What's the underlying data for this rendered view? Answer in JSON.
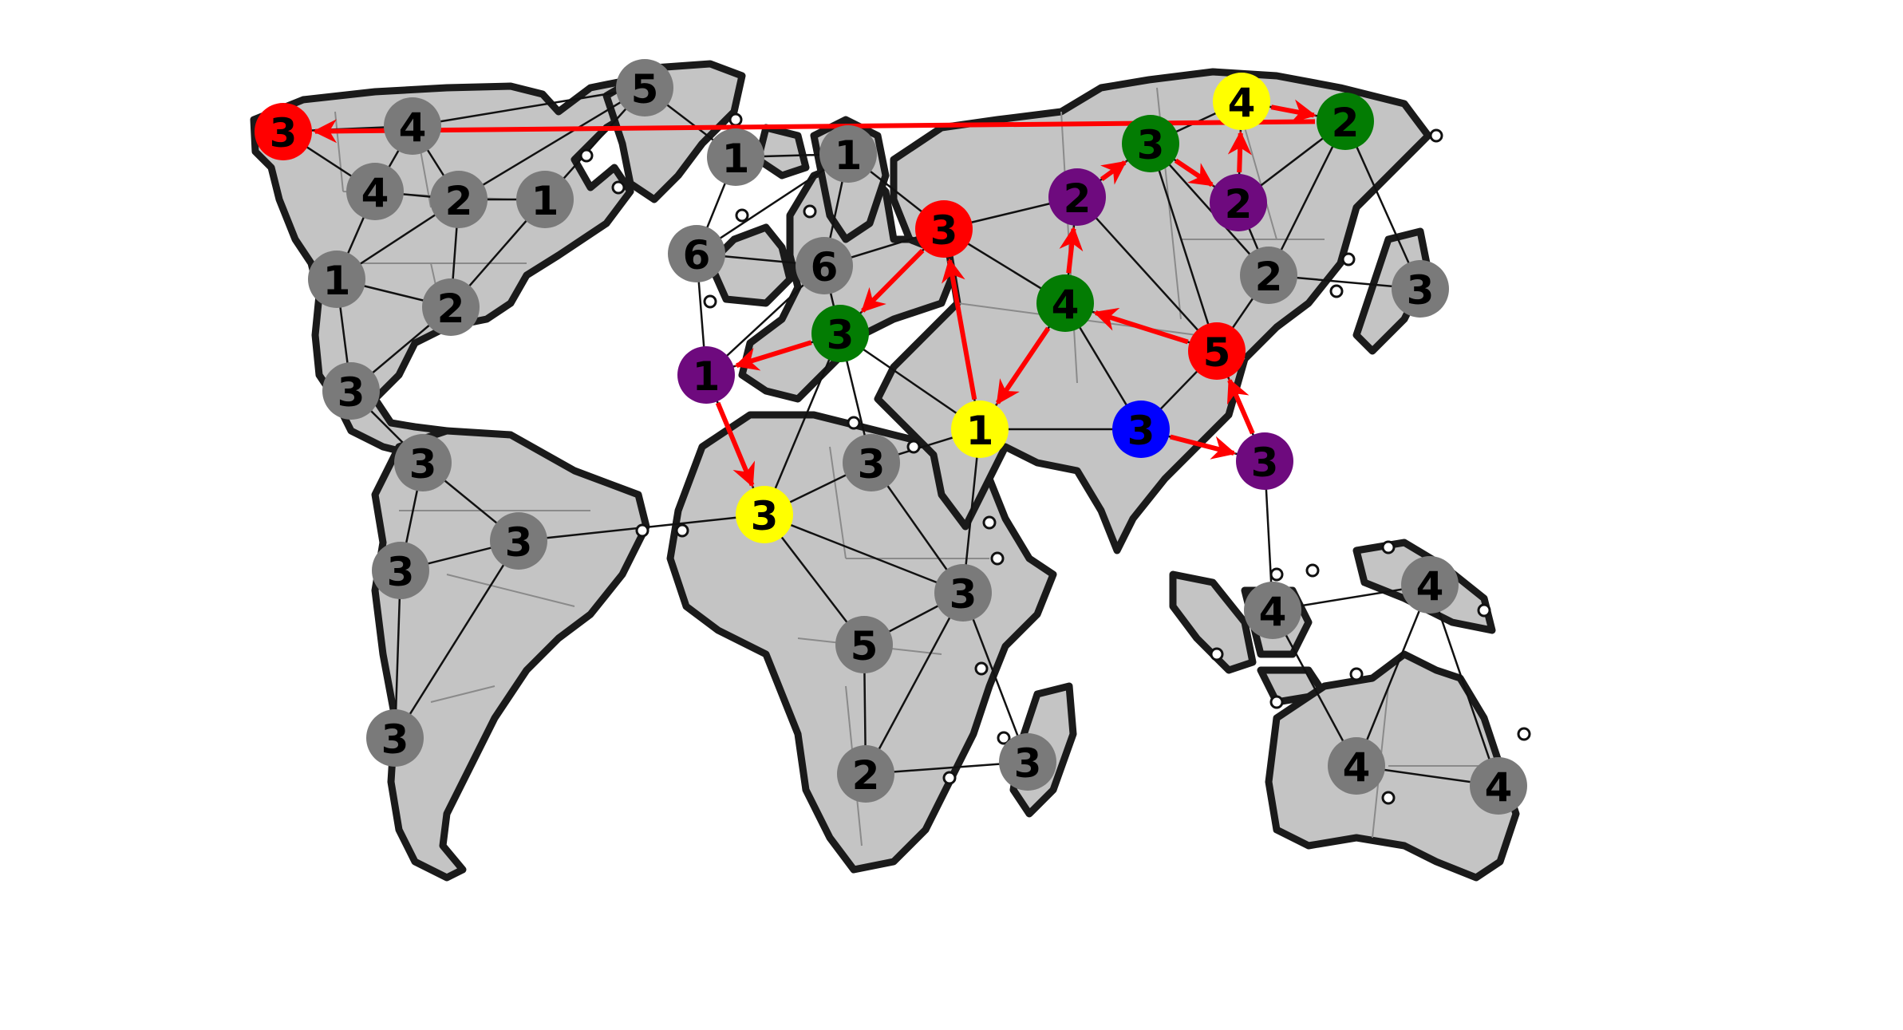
{
  "game": "Risk-style world map board",
  "colors": {
    "neutral": "#7a7a7a",
    "red": "#ff0000",
    "green": "#037c03",
    "purple": "#6e0a7e",
    "yellow": "#ffff00",
    "blue": "#0000ff",
    "arrow": "#ff0000"
  },
  "territories": [
    {
      "id": "alaska",
      "owner": "red",
      "troops": "3"
    },
    {
      "id": "northwest-territory",
      "owner": "neutral",
      "troops": "4"
    },
    {
      "id": "greenland",
      "owner": "neutral",
      "troops": "5"
    },
    {
      "id": "alberta",
      "owner": "neutral",
      "troops": "4"
    },
    {
      "id": "ontario",
      "owner": "neutral",
      "troops": "2"
    },
    {
      "id": "quebec",
      "owner": "neutral",
      "troops": "1"
    },
    {
      "id": "western-us",
      "owner": "neutral",
      "troops": "1"
    },
    {
      "id": "eastern-us",
      "owner": "neutral",
      "troops": "2"
    },
    {
      "id": "central-america",
      "owner": "neutral",
      "troops": "3"
    },
    {
      "id": "venezuela",
      "owner": "neutral",
      "troops": "3"
    },
    {
      "id": "peru",
      "owner": "neutral",
      "troops": "3"
    },
    {
      "id": "brazil",
      "owner": "neutral",
      "troops": "3"
    },
    {
      "id": "argentina",
      "owner": "neutral",
      "troops": "3"
    },
    {
      "id": "iceland",
      "owner": "neutral",
      "troops": "1"
    },
    {
      "id": "scandinavia",
      "owner": "neutral",
      "troops": "1"
    },
    {
      "id": "great-britain",
      "owner": "neutral",
      "troops": "6"
    },
    {
      "id": "northern-europe",
      "owner": "neutral",
      "troops": "6"
    },
    {
      "id": "ukraine",
      "owner": "red",
      "troops": "3"
    },
    {
      "id": "southern-europe",
      "owner": "green",
      "troops": "3"
    },
    {
      "id": "western-europe",
      "owner": "purple",
      "troops": "1"
    },
    {
      "id": "north-africa",
      "owner": "yellow",
      "troops": "3"
    },
    {
      "id": "egypt",
      "owner": "neutral",
      "troops": "3"
    },
    {
      "id": "east-africa",
      "owner": "neutral",
      "troops": "3"
    },
    {
      "id": "congo",
      "owner": "neutral",
      "troops": "5"
    },
    {
      "id": "south-africa",
      "owner": "neutral",
      "troops": "2"
    },
    {
      "id": "madagascar",
      "owner": "neutral",
      "troops": "3"
    },
    {
      "id": "middle-east",
      "owner": "yellow",
      "troops": "1"
    },
    {
      "id": "afghanistan",
      "owner": "green",
      "troops": "4"
    },
    {
      "id": "ural",
      "owner": "purple",
      "troops": "2"
    },
    {
      "id": "siberia",
      "owner": "green",
      "troops": "3"
    },
    {
      "id": "yakutsk",
      "owner": "yellow",
      "troops": "4"
    },
    {
      "id": "kamchatka",
      "owner": "green",
      "troops": "2"
    },
    {
      "id": "irkutsk",
      "owner": "purple",
      "troops": "2"
    },
    {
      "id": "mongolia",
      "owner": "neutral",
      "troops": "2"
    },
    {
      "id": "japan",
      "owner": "neutral",
      "troops": "3"
    },
    {
      "id": "china",
      "owner": "red",
      "troops": "5"
    },
    {
      "id": "india",
      "owner": "blue",
      "troops": "3"
    },
    {
      "id": "siam",
      "owner": "purple",
      "troops": "3"
    },
    {
      "id": "indonesia",
      "owner": "neutral",
      "troops": "4"
    },
    {
      "id": "new-guinea",
      "owner": "neutral",
      "troops": "4"
    },
    {
      "id": "western-australia",
      "owner": "neutral",
      "troops": "4"
    },
    {
      "id": "eastern-australia",
      "owner": "neutral",
      "troops": "4"
    }
  ],
  "connections": [
    [
      "alaska",
      "northwest-territory"
    ],
    [
      "alaska",
      "alberta"
    ],
    [
      "northwest-territory",
      "greenland"
    ],
    [
      "northwest-territory",
      "alberta"
    ],
    [
      "northwest-territory",
      "ontario"
    ],
    [
      "greenland",
      "ontario"
    ],
    [
      "greenland",
      "quebec"
    ],
    [
      "alberta",
      "ontario"
    ],
    [
      "alberta",
      "western-us"
    ],
    [
      "ontario",
      "quebec"
    ],
    [
      "ontario",
      "western-us"
    ],
    [
      "ontario",
      "eastern-us"
    ],
    [
      "quebec",
      "eastern-us"
    ],
    [
      "western-us",
      "eastern-us"
    ],
    [
      "western-us",
      "central-america"
    ],
    [
      "eastern-us",
      "central-america"
    ],
    [
      "central-america",
      "venezuela"
    ],
    [
      "venezuela",
      "brazil"
    ],
    [
      "venezuela",
      "peru"
    ],
    [
      "peru",
      "brazil"
    ],
    [
      "peru",
      "argentina"
    ],
    [
      "brazil",
      "argentina"
    ],
    [
      "brazil",
      "north-africa"
    ],
    [
      "greenland",
      "iceland"
    ],
    [
      "iceland",
      "scandinavia"
    ],
    [
      "iceland",
      "great-britain"
    ],
    [
      "scandinavia",
      "great-britain"
    ],
    [
      "scandinavia",
      "northern-europe"
    ],
    [
      "scandinavia",
      "ukraine"
    ],
    [
      "great-britain",
      "northern-europe"
    ],
    [
      "great-britain",
      "western-europe"
    ],
    [
      "northern-europe",
      "southern-europe"
    ],
    [
      "northern-europe",
      "ukraine"
    ],
    [
      "northern-europe",
      "western-europe"
    ],
    [
      "western-europe",
      "southern-europe"
    ],
    [
      "western-europe",
      "north-africa"
    ],
    [
      "southern-europe",
      "north-africa"
    ],
    [
      "southern-europe",
      "egypt"
    ],
    [
      "southern-europe",
      "middle-east"
    ],
    [
      "southern-europe",
      "ukraine"
    ],
    [
      "north-africa",
      "egypt"
    ],
    [
      "north-africa",
      "east-africa"
    ],
    [
      "north-africa",
      "congo"
    ],
    [
      "egypt",
      "east-africa"
    ],
    [
      "egypt",
      "middle-east"
    ],
    [
      "east-africa",
      "congo"
    ],
    [
      "east-africa",
      "south-africa"
    ],
    [
      "east-africa",
      "madagascar"
    ],
    [
      "east-africa",
      "middle-east"
    ],
    [
      "congo",
      "south-africa"
    ],
    [
      "south-africa",
      "madagascar"
    ],
    [
      "ukraine",
      "ural"
    ],
    [
      "ukraine",
      "afghanistan"
    ],
    [
      "ukraine",
      "middle-east"
    ],
    [
      "ural",
      "siberia"
    ],
    [
      "ural",
      "afghanistan"
    ],
    [
      "ural",
      "china"
    ],
    [
      "siberia",
      "yakutsk"
    ],
    [
      "siberia",
      "irkutsk"
    ],
    [
      "siberia",
      "china"
    ],
    [
      "siberia",
      "mongolia"
    ],
    [
      "yakutsk",
      "kamchatka"
    ],
    [
      "yakutsk",
      "irkutsk"
    ],
    [
      "irkutsk",
      "kamchatka"
    ],
    [
      "irkutsk",
      "mongolia"
    ],
    [
      "kamchatka",
      "mongolia"
    ],
    [
      "kamchatka",
      "japan"
    ],
    [
      "mongolia",
      "japan"
    ],
    [
      "mongolia",
      "china"
    ],
    [
      "afghanistan",
      "china"
    ],
    [
      "afghanistan",
      "middle-east"
    ],
    [
      "afghanistan",
      "india"
    ],
    [
      "middle-east",
      "india"
    ],
    [
      "china",
      "india"
    ],
    [
      "china",
      "siam"
    ],
    [
      "india",
      "siam"
    ],
    [
      "siam",
      "indonesia"
    ],
    [
      "indonesia",
      "new-guinea"
    ],
    [
      "indonesia",
      "western-australia"
    ],
    [
      "new-guinea",
      "western-australia"
    ],
    [
      "new-guinea",
      "eastern-australia"
    ],
    [
      "western-australia",
      "eastern-australia"
    ]
  ],
  "attacks": [
    [
      "kamchatka",
      "alaska"
    ],
    [
      "yakutsk",
      "kamchatka"
    ],
    [
      "irkutsk",
      "yakutsk"
    ],
    [
      "siberia",
      "irkutsk"
    ],
    [
      "ural",
      "siberia"
    ],
    [
      "afghanistan",
      "ural"
    ],
    [
      "afghanistan",
      "middle-east"
    ],
    [
      "china",
      "afghanistan"
    ],
    [
      "siam",
      "china"
    ],
    [
      "india",
      "siam"
    ],
    [
      "middle-east",
      "ukraine"
    ],
    [
      "ukraine",
      "southern-europe"
    ],
    [
      "southern-europe",
      "western-europe"
    ],
    [
      "western-europe",
      "north-africa"
    ]
  ]
}
